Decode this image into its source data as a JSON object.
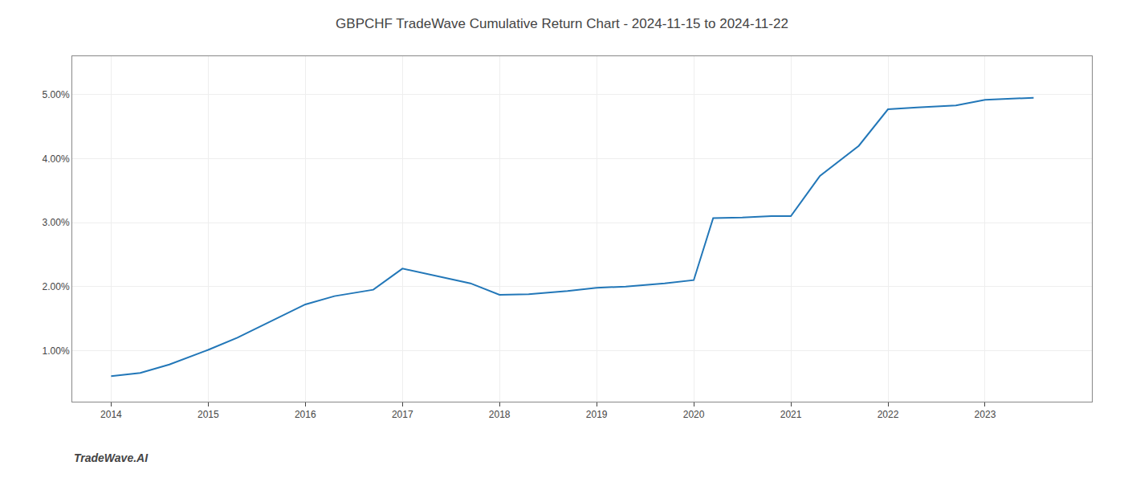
{
  "chart_data": {
    "type": "line",
    "title": "GBPCHF TradeWave Cumulative Return Chart - 2024-11-15 to 2024-11-22",
    "annotations": [
      {
        "text": "TradeWave.AI"
      }
    ],
    "x": [
      2014.0,
      2014.3,
      2014.6,
      2015.0,
      2015.3,
      2015.7,
      2016.0,
      2016.3,
      2016.7,
      2017.0,
      2017.3,
      2017.7,
      2018.0,
      2018.3,
      2018.7,
      2019.0,
      2019.3,
      2019.7,
      2020.0,
      2020.2,
      2020.5,
      2020.8,
      2021.0,
      2021.3,
      2021.7,
      2022.0,
      2022.3,
      2022.7,
      2023.0,
      2023.5
    ],
    "values": [
      0.6,
      0.65,
      0.78,
      1.01,
      1.2,
      1.5,
      1.72,
      1.85,
      1.95,
      2.28,
      2.18,
      2.05,
      1.87,
      1.88,
      1.93,
      1.98,
      2.0,
      2.05,
      2.1,
      3.07,
      3.08,
      3.1,
      3.1,
      3.73,
      4.2,
      4.77,
      4.8,
      4.83,
      4.92,
      4.95
    ],
    "color": "#2277B8",
    "xlim": [
      2013.6,
      2024.1
    ],
    "xticks": [
      2014,
      2015,
      2016,
      2017,
      2018,
      2019,
      2020,
      2021,
      2022,
      2023
    ],
    "ylim": [
      0.2,
      5.6
    ],
    "yticks": [
      {
        "value": 1.0,
        "label": "1.00%"
      },
      {
        "value": 2.0,
        "label": "2.00%"
      },
      {
        "value": 3.0,
        "label": "3.00%"
      },
      {
        "value": 4.0,
        "label": "4.00%"
      },
      {
        "value": 5.0,
        "label": "5.00%"
      }
    ],
    "grid": true
  }
}
